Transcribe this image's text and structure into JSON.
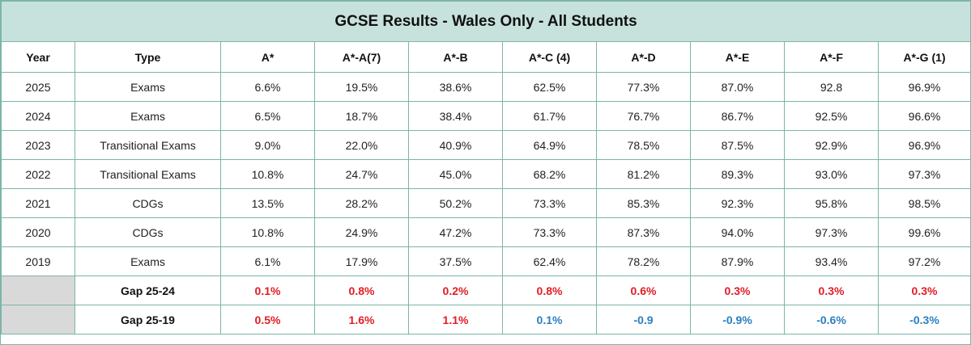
{
  "title": "GCSE Results - Wales Only - All Students",
  "columns": [
    "Year",
    "Type",
    "A*",
    "A*-A(7)",
    "A*-B",
    "A*-C (4)",
    "A*-D",
    "A*-E",
    "A*-F",
    "A*-G (1)"
  ],
  "rows": [
    {
      "year": "2025",
      "type": "Exams",
      "values": [
        "6.6%",
        "19.5%",
        "38.6%",
        "62.5%",
        "77.3%",
        "87.0%",
        "92.8",
        "96.9%"
      ]
    },
    {
      "year": "2024",
      "type": "Exams",
      "values": [
        "6.5%",
        "18.7%",
        "38.4%",
        "61.7%",
        "76.7%",
        "86.7%",
        "92.5%",
        "96.6%"
      ]
    },
    {
      "year": "2023",
      "type": "Transitional Exams",
      "values": [
        "9.0%",
        "22.0%",
        "40.9%",
        "64.9%",
        "78.5%",
        "87.5%",
        "92.9%",
        "96.9%"
      ]
    },
    {
      "year": "2022",
      "type": "Transitional Exams",
      "values": [
        "10.8%",
        "24.7%",
        "45.0%",
        "68.2%",
        "81.2%",
        "89.3%",
        "93.0%",
        "97.3%"
      ]
    },
    {
      "year": "2021",
      "type": "CDGs",
      "values": [
        "13.5%",
        "28.2%",
        "50.2%",
        "73.3%",
        "85.3%",
        "92.3%",
        "95.8%",
        "98.5%"
      ]
    },
    {
      "year": "2020",
      "type": "CDGs",
      "values": [
        "10.8%",
        "24.9%",
        "47.2%",
        "73.3%",
        "87.3%",
        "94.0%",
        "97.3%",
        "99.6%"
      ]
    },
    {
      "year": "2019",
      "type": "Exams",
      "values": [
        "6.1%",
        "17.9%",
        "37.5%",
        "62.4%",
        "78.2%",
        "87.9%",
        "93.4%",
        "97.2%"
      ]
    }
  ],
  "gaps": [
    {
      "label": "Gap 25-24",
      "values": [
        "0.1%",
        "0.8%",
        "0.2%",
        "0.8%",
        "0.6%",
        "0.3%",
        "0.3%",
        "0.3%"
      ],
      "signs": [
        "pos",
        "pos",
        "pos",
        "pos",
        "pos",
        "pos",
        "pos",
        "pos"
      ]
    },
    {
      "label": "Gap 25-19",
      "values": [
        "0.5%",
        "1.6%",
        "1.1%",
        "0.1%",
        "-0.9",
        "-0.9%",
        "-0.6%",
        "-0.3%"
      ],
      "signs": [
        "pos",
        "pos",
        "pos",
        "neg",
        "neg",
        "neg",
        "neg",
        "neg"
      ]
    }
  ],
  "colors": {
    "header_bg": "#c7e2dc",
    "border": "#7cb5a8",
    "positive": "#e11d24",
    "negative": "#2b7fc0",
    "blank": "#d9d9d9"
  }
}
